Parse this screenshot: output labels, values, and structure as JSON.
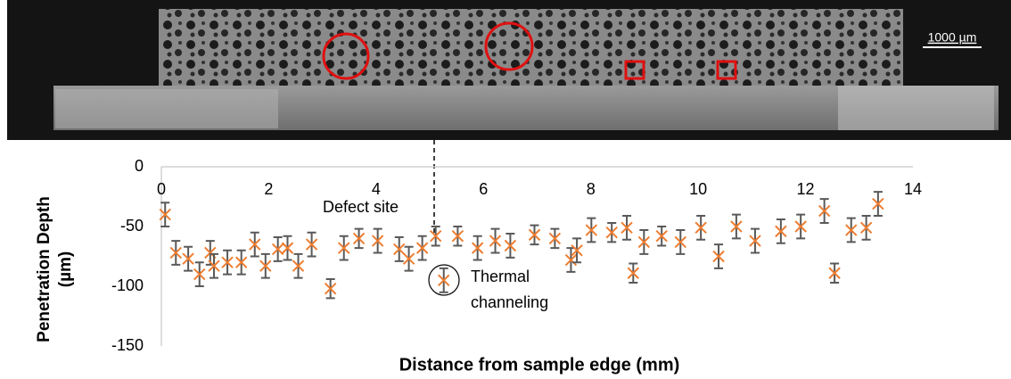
{
  "image": {
    "scale_bar": "1000 µm"
  },
  "chart_data": {
    "type": "errorbar-scatter",
    "x_label": "Distance from sample edge (mm)",
    "y_label": "Penetration Depth (µm)",
    "annotations": [
      {
        "text": "Defect site"
      },
      {
        "lines": [
          "Thermal",
          "channeling"
        ]
      }
    ],
    "xlim": [
      0,
      14
    ],
    "xticks": [
      0,
      2,
      4,
      6,
      8,
      10,
      12,
      14
    ],
    "ylim": [
      -150,
      0
    ],
    "yticks": [
      0,
      -50,
      -100,
      -150
    ],
    "series": [
      {
        "color": "#ed7d31",
        "error_color": "#595959",
        "x": [
          0.07,
          0.27,
          0.5,
          0.71,
          0.91,
          0.98,
          1.23,
          1.49,
          1.74,
          1.94,
          2.17,
          2.35,
          2.55,
          2.8,
          3.15,
          3.4,
          3.68,
          4.03,
          4.43,
          4.61,
          4.86,
          5.11,
          5.26,
          5.52,
          5.89,
          6.22,
          6.5,
          6.95,
          7.33,
          7.63,
          7.74,
          8.01,
          8.39,
          8.67,
          8.79,
          8.99,
          9.32,
          9.67,
          10.05,
          10.38,
          10.71,
          11.06,
          11.54,
          11.91,
          12.35,
          12.54,
          12.85,
          13.13,
          13.35
        ],
        "values": [
          -40,
          -72,
          -77,
          -90,
          -72,
          -83,
          -80,
          -80,
          -65,
          -83,
          -69,
          -68,
          -83,
          -65,
          -102,
          -68,
          -60,
          -62,
          -69,
          -77,
          -68,
          -58,
          -95,
          -58,
          -68,
          -62,
          -66,
          -57,
          -60,
          -78,
          -70,
          -53,
          -55,
          -51,
          -89,
          -63,
          -58,
          -63,
          -51,
          -75,
          -50,
          -62,
          -54,
          -50,
          -37,
          -89,
          -53,
          -51,
          -31
        ],
        "errors": [
          10,
          10,
          10,
          10,
          10,
          10,
          10,
          10,
          10,
          10,
          10,
          10,
          10,
          10,
          8,
          10,
          8,
          10,
          10,
          10,
          10,
          8,
          10,
          8,
          10,
          10,
          10,
          8,
          8,
          10,
          10,
          10,
          8,
          10,
          8,
          10,
          8,
          10,
          10,
          10,
          10,
          10,
          10,
          10,
          10,
          8,
          10,
          10,
          10
        ]
      }
    ]
  }
}
